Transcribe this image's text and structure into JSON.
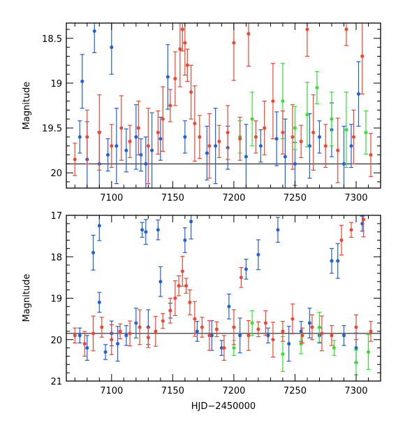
{
  "chart_data": [
    {
      "type": "scatter",
      "title": "",
      "xlabel": "",
      "ylabel": "Magnitude",
      "xlim": [
        7063,
        7320
      ],
      "ylim": [
        20.17,
        18.33
      ],
      "y_inverted": true,
      "x_ticks": [
        7100,
        7150,
        7200,
        7250,
        7300
      ],
      "y_ticks": [
        18.5,
        19,
        19.5,
        20
      ],
      "y_tick_labels": [
        "18.5",
        "19",
        "19.5",
        "20"
      ],
      "x_tick_labels": [
        "7100",
        "7150",
        "7200",
        "7250",
        "7300"
      ],
      "reference_line": 19.9,
      "series": [
        {
          "name": "blue",
          "color": "#1f5fe0",
          "points": [
            [
              7074,
              19.6
            ],
            [
              7076,
              18.98
            ],
            [
              7080,
              19.85
            ],
            [
              7086,
              18.42
            ],
            [
              7090,
              19.9
            ],
            [
              7097,
              19.8
            ],
            [
              7100,
              18.6
            ],
            [
              7104,
              19.7
            ],
            [
              7112,
              19.75
            ],
            [
              7120,
              19.6
            ],
            [
              7124,
              19.8
            ],
            [
              7128,
              19.9
            ],
            [
              7133,
              19.75
            ],
            [
              7140,
              19.62
            ],
            [
              7146,
              18.93
            ],
            [
              7160,
              19.6
            ],
            [
              7178,
              19.78
            ],
            [
              7185,
              19.7
            ],
            [
              7195,
              19.72
            ],
            [
              7210,
              19.82
            ],
            [
              7222,
              19.7
            ],
            [
              7235,
              19.62
            ],
            [
              7242,
              19.82
            ],
            [
              7250,
              19.9
            ],
            [
              7262,
              19.7
            ],
            [
              7270,
              19.6
            ],
            [
              7280,
              19.52
            ],
            [
              7290,
              19.9
            ],
            [
              7296,
              19.7
            ],
            [
              7302,
              19.12
            ]
          ]
        },
        {
          "name": "green",
          "color": "#33e033",
          "points": [
            [
              7205,
              19.6
            ],
            [
              7215,
              19.4
            ],
            [
              7240,
              19.2
            ],
            [
              7250,
              19.5
            ],
            [
              7260,
              19.35
            ],
            [
              7268,
              19.05
            ],
            [
              7280,
              19.4
            ],
            [
              7292,
              19.52
            ],
            [
              7308,
              19.55
            ]
          ]
        },
        {
          "name": "red",
          "color": "#f04530",
          "points": [
            [
              7070,
              19.85
            ],
            [
              7080,
              19.6
            ],
            [
              7090,
              19.55
            ],
            [
              7100,
              19.7
            ],
            [
              7108,
              19.5
            ],
            [
              7115,
              19.65
            ],
            [
              7122,
              19.5
            ],
            [
              7130,
              19.7
            ],
            [
              7138,
              19.55
            ],
            [
              7142,
              19.4
            ],
            [
              7148,
              19.25
            ],
            [
              7152,
              18.95
            ],
            [
              7156,
              18.62
            ],
            [
              7158,
              18.4
            ],
            [
              7160,
              18.55
            ],
            [
              7162,
              18.8
            ],
            [
              7165,
              19.1
            ],
            [
              7168,
              19.45
            ],
            [
              7172,
              19.6
            ],
            [
              7180,
              19.7
            ],
            [
              7188,
              19.65
            ],
            [
              7195,
              19.55
            ],
            [
              7200,
              18.55
            ],
            [
              7205,
              19.62
            ],
            [
              7212,
              18.45
            ],
            [
              7218,
              19.6
            ],
            [
              7225,
              19.5
            ],
            [
              7232,
              19.2
            ],
            [
              7240,
              19.55
            ],
            [
              7248,
              19.6
            ],
            [
              7255,
              19.65
            ],
            [
              7260,
              18.4
            ],
            [
              7265,
              19.55
            ],
            [
              7275,
              19.7
            ],
            [
              7285,
              19.75
            ],
            [
              7292,
              18.4
            ],
            [
              7298,
              19.6
            ],
            [
              7305,
              18.7
            ],
            [
              7312,
              19.8
            ]
          ]
        }
      ]
    },
    {
      "type": "scatter",
      "title": "",
      "xlabel": "HJD−2450000",
      "ylabel": "Magnitude",
      "xlim": [
        7063,
        7320
      ],
      "ylim": [
        21,
        17
      ],
      "y_inverted": true,
      "x_ticks": [
        7100,
        7150,
        7200,
        7250,
        7300
      ],
      "y_ticks": [
        17,
        18,
        19,
        20,
        21
      ],
      "y_tick_labels": [
        "17",
        "18",
        "19",
        "20",
        "21"
      ],
      "x_tick_labels": [
        "7100",
        "7150",
        "7200",
        "7250",
        "7300"
      ],
      "reference_line": 19.85,
      "series": [
        {
          "name": "blue",
          "color": "#1f5fe0",
          "points": [
            [
              7074,
              19.9
            ],
            [
              7080,
              20.2
            ],
            [
              7085,
              17.9
            ],
            [
              7090,
              19.1
            ],
            [
              7090,
              17.25
            ],
            [
              7095,
              20.3
            ],
            [
              7100,
              19.85
            ],
            [
              7105,
              20.1
            ],
            [
              7112,
              19.9
            ],
            [
              7120,
              19.6
            ],
            [
              7125,
              17.35
            ],
            [
              7128,
              17.4
            ],
            [
              7130,
              19.7
            ],
            [
              7138,
              17.35
            ],
            [
              7140,
              18.6
            ],
            [
              7148,
              19.3
            ],
            [
              7160,
              17.6
            ],
            [
              7165,
              17.15
            ],
            [
              7170,
              19.8
            ],
            [
              7182,
              19.9
            ],
            [
              7190,
              20.2
            ],
            [
              7196,
              19.2
            ],
            [
              7205,
              19.9
            ],
            [
              7210,
              18.3
            ],
            [
              7220,
              17.95
            ],
            [
              7228,
              19.9
            ],
            [
              7236,
              17.35
            ],
            [
              7245,
              20.1
            ],
            [
              7255,
              19.8
            ],
            [
              7262,
              19.6
            ],
            [
              7270,
              19.9
            ],
            [
              7280,
              18.1
            ],
            [
              7285,
              18.1
            ],
            [
              7290,
              19.9
            ],
            [
              7300,
              20.2
            ],
            [
              7305,
              17.2
            ]
          ]
        },
        {
          "name": "green",
          "color": "#33e033",
          "points": [
            [
              7200,
              20.2
            ],
            [
              7215,
              19.6
            ],
            [
              7240,
              20.35
            ],
            [
              7255,
              20.1
            ],
            [
              7270,
              19.7
            ],
            [
              7282,
              20.2
            ],
            [
              7300,
              20.55
            ],
            [
              7310,
              20.3
            ]
          ]
        },
        {
          "name": "red",
          "color": "#f04530",
          "points": [
            [
              7070,
              19.9
            ],
            [
              7078,
              20.1
            ],
            [
              7085,
              19.85
            ],
            [
              7092,
              19.7
            ],
            [
              7100,
              20.0
            ],
            [
              7107,
              19.8
            ],
            [
              7115,
              19.85
            ],
            [
              7123,
              19.7
            ],
            [
              7130,
              19.95
            ],
            [
              7136,
              19.8
            ],
            [
              7142,
              19.55
            ],
            [
              7148,
              19.3
            ],
            [
              7152,
              19.0
            ],
            [
              7155,
              18.7
            ],
            [
              7158,
              18.35
            ],
            [
              7161,
              18.7
            ],
            [
              7164,
              19.1
            ],
            [
              7168,
              19.5
            ],
            [
              7174,
              19.7
            ],
            [
              7180,
              19.9
            ],
            [
              7186,
              19.75
            ],
            [
              7192,
              20.2
            ],
            [
              7200,
              19.7
            ],
            [
              7206,
              18.5
            ],
            [
              7212,
              19.9
            ],
            [
              7220,
              19.75
            ],
            [
              7226,
              19.6
            ],
            [
              7232,
              20.0
            ],
            [
              7240,
              19.8
            ],
            [
              7248,
              19.5
            ],
            [
              7256,
              19.9
            ],
            [
              7264,
              19.7
            ],
            [
              7272,
              19.85
            ],
            [
              7280,
              19.9
            ],
            [
              7288,
              17.6
            ],
            [
              7296,
              17.35
            ],
            [
              7300,
              19.7
            ],
            [
              7306,
              17.1
            ],
            [
              7312,
              19.8
            ]
          ]
        }
      ]
    }
  ]
}
